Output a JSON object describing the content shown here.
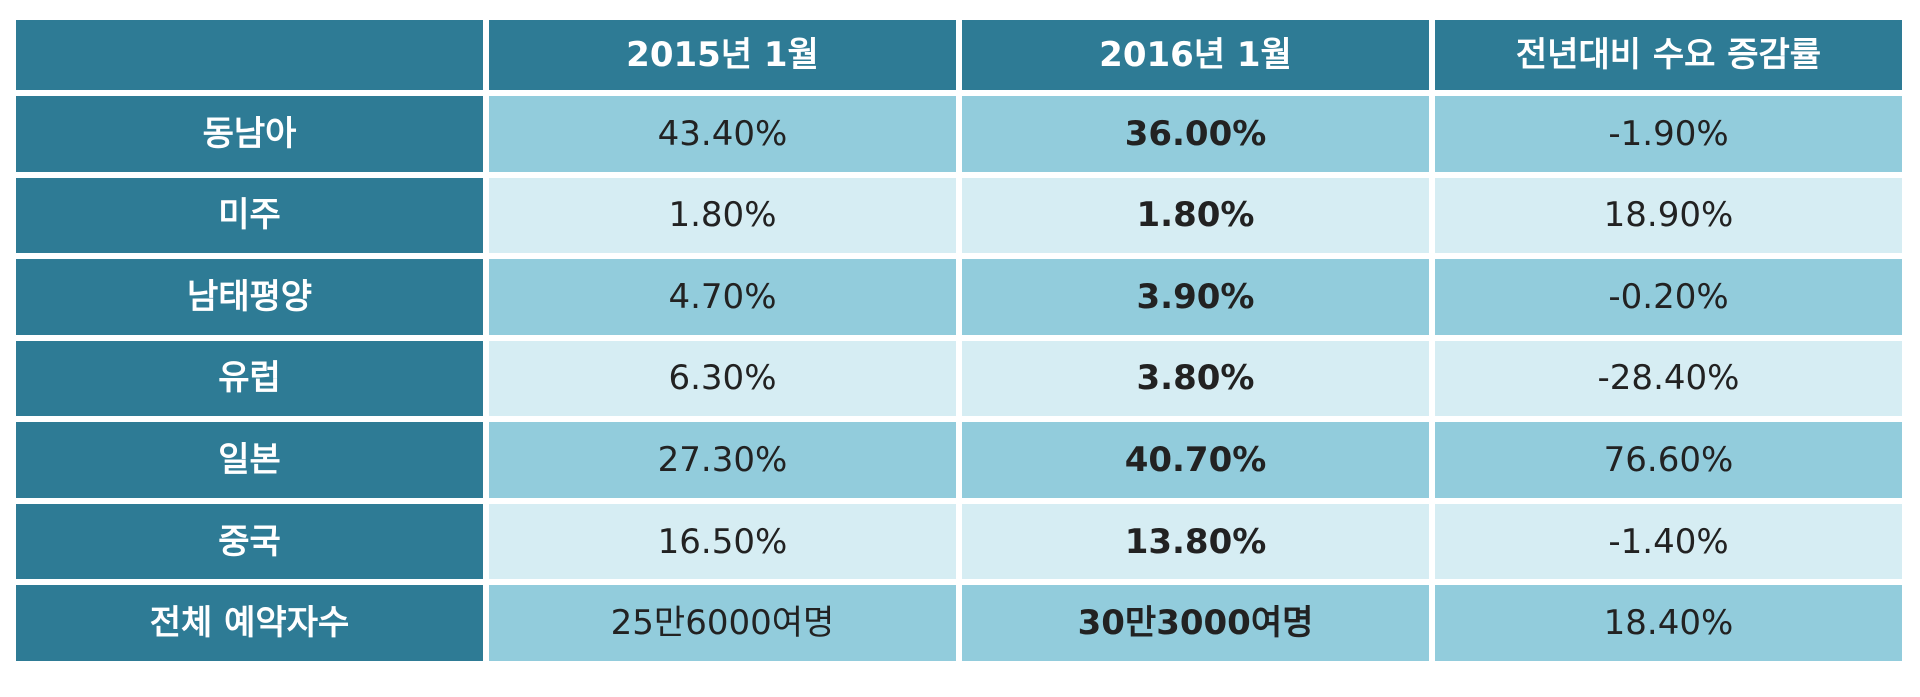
{
  "chart_data": {
    "type": "table",
    "columns": [
      "",
      "2015년 1월",
      "2016년 1월",
      "전년대비 수요 증감률"
    ],
    "rows": [
      {
        "label": "동남아",
        "jan2015": "43.40%",
        "jan2016": "36.00%",
        "change": "-1.90%"
      },
      {
        "label": "미주",
        "jan2015": "1.80%",
        "jan2016": "1.80%",
        "change": "18.90%"
      },
      {
        "label": "남태평양",
        "jan2015": "4.70%",
        "jan2016": "3.90%",
        "change": "-0.20%"
      },
      {
        "label": "유럽",
        "jan2015": "6.30%",
        "jan2016": "3.80%",
        "change": "-28.40%"
      },
      {
        "label": "일본",
        "jan2015": "27.30%",
        "jan2016": "40.70%",
        "change": "76.60%"
      },
      {
        "label": "중국",
        "jan2015": "16.50%",
        "jan2016": "13.80%",
        "change": "-1.40%"
      },
      {
        "label": "전체 예약자수",
        "jan2015": "25만6000여명",
        "jan2016": "30만3000여명",
        "change": "18.40%"
      }
    ]
  },
  "colors": {
    "header_bg": "#2e7b95",
    "row_shade_dark": "#92ccdc",
    "row_shade_light": "#d6edf3",
    "header_text": "#ffffff",
    "cell_text": "#222222"
  }
}
